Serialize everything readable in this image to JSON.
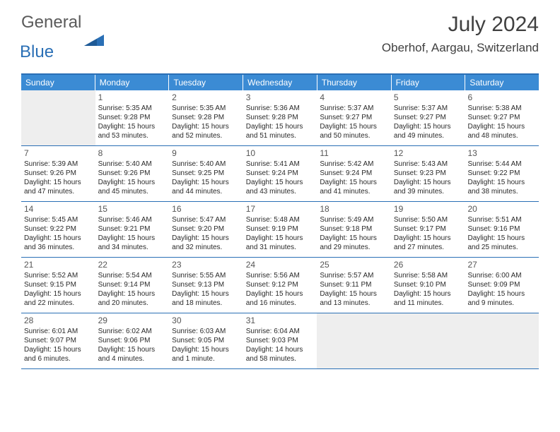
{
  "logo": {
    "general": "General",
    "blue": "Blue"
  },
  "title": "July 2024",
  "location": "Oberhof, Aargau, Switzerland",
  "colors": {
    "header_bar": "#3b8bd4",
    "rule": "#2a6fb5",
    "empty": "#eeeeee",
    "text": "#2a2a2a",
    "daynum": "#555555",
    "logo_gray": "#5a5a5a",
    "logo_blue": "#2a6fb5"
  },
  "weekdays": [
    "Sunday",
    "Monday",
    "Tuesday",
    "Wednesday",
    "Thursday",
    "Friday",
    "Saturday"
  ],
  "weeks": [
    [
      {
        "num": "",
        "sunrise": "",
        "sunset": "",
        "daylight1": "",
        "daylight2": "",
        "empty": true
      },
      {
        "num": "1",
        "sunrise": "Sunrise: 5:35 AM",
        "sunset": "Sunset: 9:28 PM",
        "daylight1": "Daylight: 15 hours",
        "daylight2": "and 53 minutes."
      },
      {
        "num": "2",
        "sunrise": "Sunrise: 5:35 AM",
        "sunset": "Sunset: 9:28 PM",
        "daylight1": "Daylight: 15 hours",
        "daylight2": "and 52 minutes."
      },
      {
        "num": "3",
        "sunrise": "Sunrise: 5:36 AM",
        "sunset": "Sunset: 9:28 PM",
        "daylight1": "Daylight: 15 hours",
        "daylight2": "and 51 minutes."
      },
      {
        "num": "4",
        "sunrise": "Sunrise: 5:37 AM",
        "sunset": "Sunset: 9:27 PM",
        "daylight1": "Daylight: 15 hours",
        "daylight2": "and 50 minutes."
      },
      {
        "num": "5",
        "sunrise": "Sunrise: 5:37 AM",
        "sunset": "Sunset: 9:27 PM",
        "daylight1": "Daylight: 15 hours",
        "daylight2": "and 49 minutes."
      },
      {
        "num": "6",
        "sunrise": "Sunrise: 5:38 AM",
        "sunset": "Sunset: 9:27 PM",
        "daylight1": "Daylight: 15 hours",
        "daylight2": "and 48 minutes."
      }
    ],
    [
      {
        "num": "7",
        "sunrise": "Sunrise: 5:39 AM",
        "sunset": "Sunset: 9:26 PM",
        "daylight1": "Daylight: 15 hours",
        "daylight2": "and 47 minutes."
      },
      {
        "num": "8",
        "sunrise": "Sunrise: 5:40 AM",
        "sunset": "Sunset: 9:26 PM",
        "daylight1": "Daylight: 15 hours",
        "daylight2": "and 45 minutes."
      },
      {
        "num": "9",
        "sunrise": "Sunrise: 5:40 AM",
        "sunset": "Sunset: 9:25 PM",
        "daylight1": "Daylight: 15 hours",
        "daylight2": "and 44 minutes."
      },
      {
        "num": "10",
        "sunrise": "Sunrise: 5:41 AM",
        "sunset": "Sunset: 9:24 PM",
        "daylight1": "Daylight: 15 hours",
        "daylight2": "and 43 minutes."
      },
      {
        "num": "11",
        "sunrise": "Sunrise: 5:42 AM",
        "sunset": "Sunset: 9:24 PM",
        "daylight1": "Daylight: 15 hours",
        "daylight2": "and 41 minutes."
      },
      {
        "num": "12",
        "sunrise": "Sunrise: 5:43 AM",
        "sunset": "Sunset: 9:23 PM",
        "daylight1": "Daylight: 15 hours",
        "daylight2": "and 39 minutes."
      },
      {
        "num": "13",
        "sunrise": "Sunrise: 5:44 AM",
        "sunset": "Sunset: 9:22 PM",
        "daylight1": "Daylight: 15 hours",
        "daylight2": "and 38 minutes."
      }
    ],
    [
      {
        "num": "14",
        "sunrise": "Sunrise: 5:45 AM",
        "sunset": "Sunset: 9:22 PM",
        "daylight1": "Daylight: 15 hours",
        "daylight2": "and 36 minutes."
      },
      {
        "num": "15",
        "sunrise": "Sunrise: 5:46 AM",
        "sunset": "Sunset: 9:21 PM",
        "daylight1": "Daylight: 15 hours",
        "daylight2": "and 34 minutes."
      },
      {
        "num": "16",
        "sunrise": "Sunrise: 5:47 AM",
        "sunset": "Sunset: 9:20 PM",
        "daylight1": "Daylight: 15 hours",
        "daylight2": "and 32 minutes."
      },
      {
        "num": "17",
        "sunrise": "Sunrise: 5:48 AM",
        "sunset": "Sunset: 9:19 PM",
        "daylight1": "Daylight: 15 hours",
        "daylight2": "and 31 minutes."
      },
      {
        "num": "18",
        "sunrise": "Sunrise: 5:49 AM",
        "sunset": "Sunset: 9:18 PM",
        "daylight1": "Daylight: 15 hours",
        "daylight2": "and 29 minutes."
      },
      {
        "num": "19",
        "sunrise": "Sunrise: 5:50 AM",
        "sunset": "Sunset: 9:17 PM",
        "daylight1": "Daylight: 15 hours",
        "daylight2": "and 27 minutes."
      },
      {
        "num": "20",
        "sunrise": "Sunrise: 5:51 AM",
        "sunset": "Sunset: 9:16 PM",
        "daylight1": "Daylight: 15 hours",
        "daylight2": "and 25 minutes."
      }
    ],
    [
      {
        "num": "21",
        "sunrise": "Sunrise: 5:52 AM",
        "sunset": "Sunset: 9:15 PM",
        "daylight1": "Daylight: 15 hours",
        "daylight2": "and 22 minutes."
      },
      {
        "num": "22",
        "sunrise": "Sunrise: 5:54 AM",
        "sunset": "Sunset: 9:14 PM",
        "daylight1": "Daylight: 15 hours",
        "daylight2": "and 20 minutes."
      },
      {
        "num": "23",
        "sunrise": "Sunrise: 5:55 AM",
        "sunset": "Sunset: 9:13 PM",
        "daylight1": "Daylight: 15 hours",
        "daylight2": "and 18 minutes."
      },
      {
        "num": "24",
        "sunrise": "Sunrise: 5:56 AM",
        "sunset": "Sunset: 9:12 PM",
        "daylight1": "Daylight: 15 hours",
        "daylight2": "and 16 minutes."
      },
      {
        "num": "25",
        "sunrise": "Sunrise: 5:57 AM",
        "sunset": "Sunset: 9:11 PM",
        "daylight1": "Daylight: 15 hours",
        "daylight2": "and 13 minutes."
      },
      {
        "num": "26",
        "sunrise": "Sunrise: 5:58 AM",
        "sunset": "Sunset: 9:10 PM",
        "daylight1": "Daylight: 15 hours",
        "daylight2": "and 11 minutes."
      },
      {
        "num": "27",
        "sunrise": "Sunrise: 6:00 AM",
        "sunset": "Sunset: 9:09 PM",
        "daylight1": "Daylight: 15 hours",
        "daylight2": "and 9 minutes."
      }
    ],
    [
      {
        "num": "28",
        "sunrise": "Sunrise: 6:01 AM",
        "sunset": "Sunset: 9:07 PM",
        "daylight1": "Daylight: 15 hours",
        "daylight2": "and 6 minutes."
      },
      {
        "num": "29",
        "sunrise": "Sunrise: 6:02 AM",
        "sunset": "Sunset: 9:06 PM",
        "daylight1": "Daylight: 15 hours",
        "daylight2": "and 4 minutes."
      },
      {
        "num": "30",
        "sunrise": "Sunrise: 6:03 AM",
        "sunset": "Sunset: 9:05 PM",
        "daylight1": "Daylight: 15 hours",
        "daylight2": "and 1 minute."
      },
      {
        "num": "31",
        "sunrise": "Sunrise: 6:04 AM",
        "sunset": "Sunset: 9:03 PM",
        "daylight1": "Daylight: 14 hours",
        "daylight2": "and 58 minutes."
      },
      {
        "num": "",
        "sunrise": "",
        "sunset": "",
        "daylight1": "",
        "daylight2": "",
        "empty": true
      },
      {
        "num": "",
        "sunrise": "",
        "sunset": "",
        "daylight1": "",
        "daylight2": "",
        "empty": true
      },
      {
        "num": "",
        "sunrise": "",
        "sunset": "",
        "daylight1": "",
        "daylight2": "",
        "empty": true
      }
    ]
  ]
}
